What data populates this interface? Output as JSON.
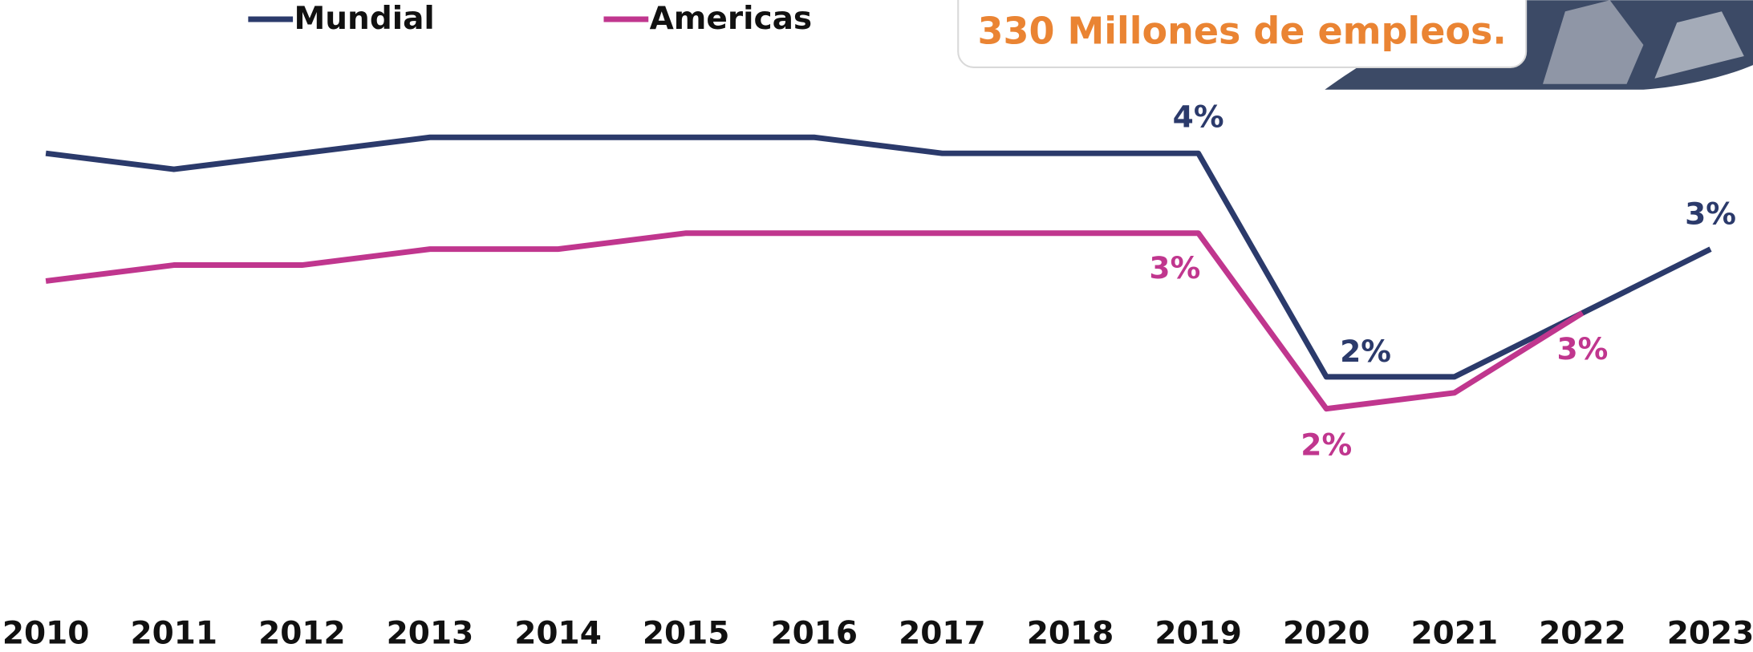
{
  "chart_data": {
    "type": "line",
    "annotation": "330 Millones de empleos.",
    "categories": [
      "2010",
      "2011",
      "2012",
      "2013",
      "2014",
      "2015",
      "2016",
      "2017",
      "2018",
      "2019",
      "2020",
      "2021",
      "2022",
      "2023"
    ],
    "ylim": [
      1.5,
      4.5
    ],
    "series": [
      {
        "name": "Mundial",
        "color": "#2b3a6b",
        "values": [
          3.6,
          3.5,
          3.6,
          3.7,
          3.7,
          3.7,
          3.7,
          3.6,
          3.6,
          3.6,
          2.2,
          2.2,
          2.6,
          3.0
        ],
        "value_labels": [
          null,
          null,
          null,
          null,
          null,
          null,
          null,
          null,
          null,
          "4%",
          "2%",
          null,
          null,
          "3%"
        ]
      },
      {
        "name": "Americas",
        "color": "#c0368e",
        "values": [
          2.8,
          2.9,
          2.9,
          3.0,
          3.0,
          3.1,
          3.1,
          3.1,
          3.1,
          3.1,
          2.0,
          2.1,
          2.6,
          null
        ],
        "value_labels": [
          null,
          null,
          null,
          null,
          null,
          null,
          null,
          null,
          null,
          "3%",
          "2%",
          null,
          "3%",
          null
        ]
      }
    ]
  }
}
